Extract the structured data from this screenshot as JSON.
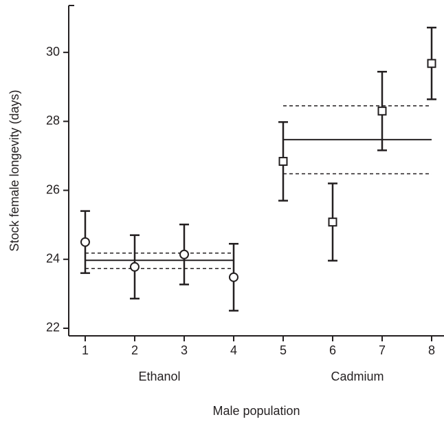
{
  "chart_data": {
    "type": "scatter",
    "y_label": "Stock female longevity (days)",
    "x_label": "Male population",
    "xlim": [
      0.667,
      8.25
    ],
    "ylim": [
      21.78,
      31.36
    ],
    "xticks": [
      1,
      2,
      3,
      4,
      5,
      6,
      7,
      8
    ],
    "yticks": [
      22,
      24,
      26,
      28,
      30
    ],
    "color": "#231f20",
    "series": [
      {
        "name": "Ethanol",
        "marker": "circle",
        "x": [
          1,
          2,
          3,
          4
        ],
        "values": [
          24.5,
          23.78,
          24.14,
          23.48
        ],
        "errors": [
          0.9,
          0.92,
          0.87,
          0.97
        ],
        "mean": 23.97,
        "ci": [
          23.73,
          24.18
        ]
      },
      {
        "name": "Cadmium",
        "marker": "square",
        "x": [
          5,
          6,
          7,
          8
        ],
        "values": [
          26.84,
          25.08,
          28.3,
          29.68
        ],
        "errors": [
          1.14,
          1.12,
          1.14,
          1.04
        ],
        "mean": 27.47,
        "ci": [
          26.48,
          28.45
        ]
      }
    ]
  }
}
